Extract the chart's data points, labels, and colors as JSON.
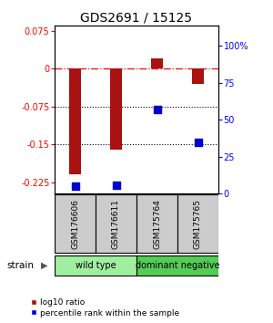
{
  "title": "GDS2691 / 15125",
  "samples": [
    "GSM176606",
    "GSM176611",
    "GSM175764",
    "GSM175765"
  ],
  "log10_ratio": [
    -0.21,
    -0.16,
    0.02,
    -0.03
  ],
  "percentile_rank": [
    5,
    6,
    57,
    35
  ],
  "groups": [
    {
      "name": "wild type",
      "samples": [
        0,
        1
      ],
      "color": "#a0eea0"
    },
    {
      "name": "dominant negative",
      "samples": [
        2,
        3
      ],
      "color": "#55cc55"
    }
  ],
  "ylim_left": [
    -0.248,
    0.085
  ],
  "ylim_right": [
    0,
    113.5
  ],
  "yticks_left": [
    0.075,
    0,
    -0.075,
    -0.15,
    -0.225
  ],
  "ytick_labels_left": [
    "0.075",
    "0",
    "-0.075",
    "-0.15",
    "-0.225"
  ],
  "yticks_right": [
    100,
    75,
    50,
    25,
    0
  ],
  "ytick_labels_right": [
    "100%",
    "75",
    "50",
    "25",
    "0"
  ],
  "bar_color": "#aa1111",
  "dot_color": "#0000cc",
  "bar_width": 0.28,
  "dot_size": 40,
  "strain_label": "strain",
  "legend_ratio_label": "log10 ratio",
  "legend_pct_label": "percentile rank within the sample",
  "background_color": "#ffffff"
}
